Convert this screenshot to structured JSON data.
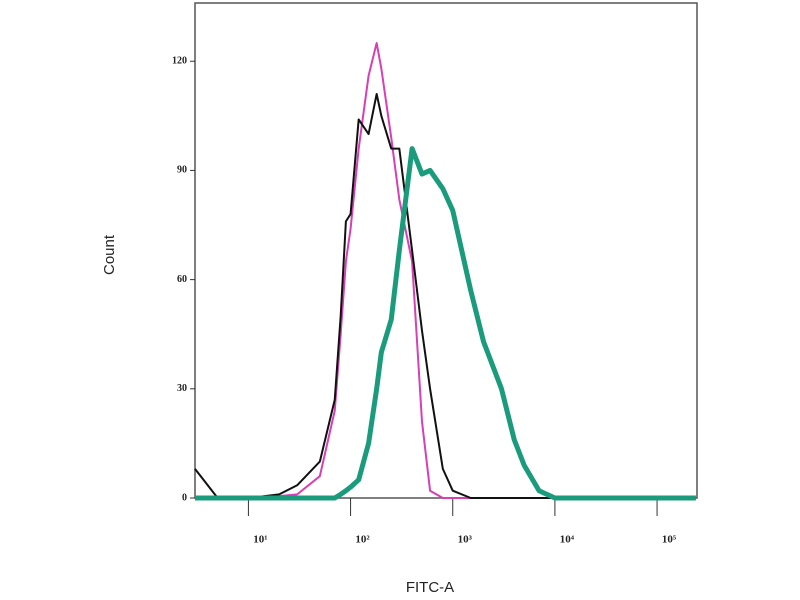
{
  "chart_data": {
    "type": "line",
    "x_label": "FITC-A",
    "y_label": "Count",
    "xscale": "log",
    "grid": false,
    "xlim": [
      3,
      246000
    ],
    "ylim": [
      0,
      136
    ],
    "xticks": [
      {
        "value": 10,
        "label": "10¹"
      },
      {
        "value": 100,
        "label": "10²"
      },
      {
        "value": 1000,
        "label": "10³"
      },
      {
        "value": 10000,
        "label": "10⁴"
      },
      {
        "value": 100000,
        "label": "10⁵"
      }
    ],
    "yticks": [
      0,
      30,
      60,
      90,
      120
    ],
    "x": [
      3,
      5,
      10,
      20,
      30,
      50,
      70,
      80,
      90,
      100,
      120,
      150,
      180,
      200,
      250,
      300,
      400,
      500,
      600,
      800,
      1000,
      1500,
      2000,
      3000,
      4000,
      5000,
      7000,
      10000,
      100000,
      240000
    ],
    "series": [
      {
        "color": "#d63fb5",
        "linewidth": 2,
        "values": [
          0,
          0,
          0,
          0.5,
          1,
          6,
          24,
          45,
          65,
          74,
          96,
          116,
          125,
          118,
          99,
          82,
          65,
          21,
          2,
          0,
          0,
          0,
          0,
          0,
          0,
          0,
          0,
          0,
          0,
          0
        ]
      },
      {
        "color": "#111111",
        "linewidth": 2,
        "values": [
          8,
          0,
          0,
          1,
          3.5,
          10,
          27,
          50,
          76,
          78,
          104,
          100,
          111,
          105,
          96,
          96,
          68,
          46,
          30,
          8,
          2,
          0,
          0,
          0,
          0,
          0,
          0,
          0,
          0,
          0
        ]
      },
      {
        "color": "#1a9b7c",
        "linewidth": 5,
        "values": [
          0,
          0,
          0,
          0,
          0,
          0,
          0,
          1,
          2,
          3,
          5,
          15,
          30,
          40,
          49,
          68,
          96,
          89,
          90,
          85,
          79,
          57,
          43,
          30,
          16,
          9,
          2,
          0,
          0,
          0
        ]
      }
    ]
  }
}
